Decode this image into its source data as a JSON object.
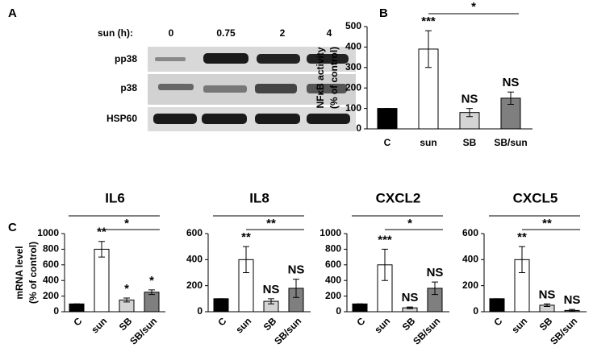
{
  "panel_a": {
    "label": "A",
    "time_title": "sun (h):",
    "times": [
      "0",
      "0.75",
      "2",
      "4"
    ],
    "proteins": [
      "pp38",
      "p38",
      "HSP60"
    ]
  },
  "chart_data": [
    {
      "type": "bar",
      "panel": "B",
      "ylabel": [
        "NFκB activity",
        "(% of control)"
      ],
      "categories": [
        "C",
        "sun",
        "SB",
        "SB/sun"
      ],
      "values": [
        100,
        390,
        80,
        150
      ],
      "errors": [
        0,
        90,
        20,
        30
      ],
      "colors": [
        "#000000",
        "#ffffff",
        "#d4d4d4",
        "#7f7f7f"
      ],
      "bar_labels": [
        null,
        "***",
        "NS",
        "NS"
      ],
      "comparison": "*",
      "ylim": [
        0,
        500
      ],
      "yticks": [
        0,
        100,
        200,
        300,
        400,
        500
      ]
    },
    {
      "type": "bar",
      "panel": "C",
      "title": "IL6",
      "ylabel": [
        "mRNA level",
        "(% of control)"
      ],
      "categories": [
        "C",
        "sun",
        "SB",
        "SB/sun"
      ],
      "values": [
        100,
        800,
        150,
        250
      ],
      "errors": [
        0,
        100,
        25,
        30
      ],
      "colors": [
        "#000000",
        "#ffffff",
        "#d4d4d4",
        "#7f7f7f"
      ],
      "bar_labels": [
        null,
        "**",
        "*",
        "*"
      ],
      "comparison": "*",
      "ylim": [
        0,
        1000
      ],
      "yticks": [
        0,
        200,
        400,
        600,
        800,
        1000
      ]
    },
    {
      "type": "bar",
      "title": "IL8",
      "categories": [
        "C",
        "sun",
        "SB",
        "SB/sun"
      ],
      "values": [
        100,
        400,
        80,
        180
      ],
      "errors": [
        0,
        100,
        20,
        70
      ],
      "colors": [
        "#000000",
        "#ffffff",
        "#d4d4d4",
        "#7f7f7f"
      ],
      "bar_labels": [
        null,
        "**",
        "NS",
        "NS"
      ],
      "comparison": "**",
      "ylim": [
        0,
        600
      ],
      "yticks": [
        0,
        200,
        400,
        600
      ]
    },
    {
      "type": "bar",
      "title": "CXCL2",
      "categories": [
        "C",
        "sun",
        "SB",
        "SB/sun"
      ],
      "values": [
        100,
        600,
        50,
        300
      ],
      "errors": [
        0,
        200,
        10,
        80
      ],
      "colors": [
        "#000000",
        "#ffffff",
        "#d4d4d4",
        "#7f7f7f"
      ],
      "bar_labels": [
        null,
        "***",
        "NS",
        "NS"
      ],
      "comparison": "*",
      "ylim": [
        0,
        1000
      ],
      "yticks": [
        0,
        200,
        400,
        600,
        800,
        1000
      ]
    },
    {
      "type": "bar",
      "title": "CXCL5",
      "categories": [
        "C",
        "sun",
        "SB",
        "SB/sun"
      ],
      "values": [
        100,
        400,
        50,
        10
      ],
      "errors": [
        0,
        100,
        10,
        8
      ],
      "colors": [
        "#000000",
        "#ffffff",
        "#d4d4d4",
        "#7f7f7f"
      ],
      "bar_labels": [
        null,
        "**",
        "NS",
        "NS"
      ],
      "comparison": "**",
      "ylim": [
        0,
        600
      ],
      "yticks": [
        0,
        200,
        400,
        600
      ]
    }
  ]
}
